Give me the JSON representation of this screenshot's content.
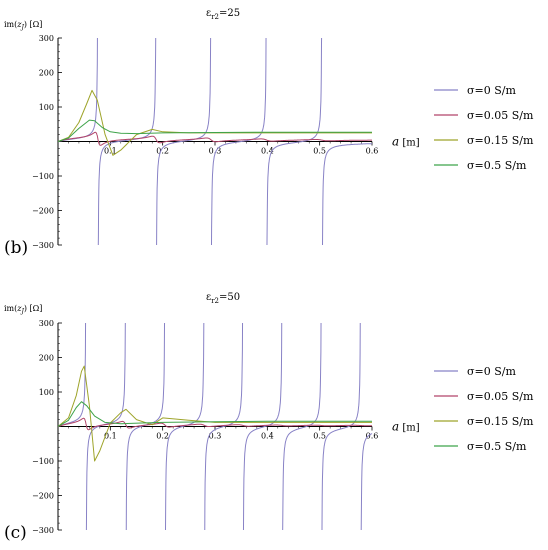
{
  "chart_data": [
    {
      "type": "line",
      "panel_label": "(b)",
      "title": "εr2=25",
      "title_parts": [
        "ε",
        "r2",
        "=25"
      ],
      "ylabel": "im(zJ) [Ω]",
      "ylabel_parts": [
        "im(",
        "z",
        "J",
        ") [Ω]"
      ],
      "xlabel": "a [m]",
      "xlabel_parts": [
        "a",
        " [m]"
      ],
      "xlim": [
        0,
        0.6
      ],
      "ylim": [
        -300,
        300
      ],
      "xticks": [
        0.1,
        0.2,
        0.3,
        0.4,
        0.5,
        0.6
      ],
      "xtick_labels": [
        "0.1",
        "0.2",
        "0.3",
        "0.4",
        "0.5",
        "0.6"
      ],
      "yticks": [
        -300,
        -200,
        -100,
        100,
        200,
        300
      ],
      "ytick_labels": [
        "−300",
        "−200",
        "−100",
        "100",
        "200",
        "300"
      ],
      "legend_position": "right",
      "series": [
        {
          "name": "σ=0 S/m",
          "color": "#8882c6",
          "poles": [
            0.0762,
            0.1875,
            0.2925,
            0.3985,
            0.5045
          ],
          "amp": 45
        },
        {
          "name": "σ=0.05 S/m",
          "color": "#b2456a",
          "damping": 3.2,
          "offset": 6,
          "amp": 40,
          "poles": [
            0.0762,
            0.1875,
            0.2925,
            0.3985,
            0.5045
          ]
        },
        {
          "name": "σ=0.15 S/m",
          "color": "#9ea42a",
          "x": [
            0,
            0.02,
            0.04,
            0.055,
            0.065,
            0.075,
            0.09,
            0.105,
            0.12,
            0.15,
            0.18,
            0.2,
            0.25,
            0.3,
            0.4,
            0.5,
            0.6
          ],
          "y": [
            0,
            12,
            55,
            110,
            148,
            120,
            20,
            -40,
            -25,
            20,
            35,
            28,
            25,
            25,
            25,
            25,
            25
          ]
        },
        {
          "name": "σ=0.5 S/m",
          "color": "#3ea34a",
          "x": [
            0,
            0.02,
            0.04,
            0.06,
            0.07,
            0.085,
            0.1,
            0.12,
            0.15,
            0.2,
            0.3,
            0.4,
            0.5,
            0.6
          ],
          "y": [
            0,
            10,
            38,
            62,
            60,
            40,
            28,
            24,
            23,
            25,
            26,
            27,
            27,
            27
          ]
        }
      ]
    },
    {
      "type": "line",
      "panel_label": "(c)",
      "title": "εr2=50",
      "title_parts": [
        "ε",
        "r2",
        "=50"
      ],
      "ylabel": "im(zJ) [Ω]",
      "ylabel_parts": [
        "im(",
        "z",
        "J",
        ") [Ω]"
      ],
      "xlabel": "a [m]",
      "xlabel_parts": [
        "a",
        " [m]"
      ],
      "xlim": [
        0,
        0.6
      ],
      "ylim": [
        -300,
        300
      ],
      "xticks": [
        0.1,
        0.2,
        0.3,
        0.4,
        0.5,
        0.6
      ],
      "xtick_labels": [
        "0.1",
        "0.2",
        "0.3",
        "0.4",
        "0.5",
        "0.6"
      ],
      "yticks": [
        -300,
        -200,
        -100,
        100,
        200,
        300
      ],
      "ytick_labels": [
        "−300",
        "−200",
        "−100",
        "100",
        "200",
        "300"
      ],
      "legend_position": "right",
      "series": [
        {
          "name": "σ=0 S/m",
          "color": "#8882c6",
          "poles": [
            0.0535,
            0.1295,
            0.2045,
            0.2795,
            0.3535,
            0.4285,
            0.5035,
            0.5785
          ],
          "amp": 45
        },
        {
          "name": "σ=0.05 S/m",
          "color": "#b2456a",
          "damping": 4.0,
          "offset": 5,
          "amp": 35,
          "poles": [
            0.0535,
            0.1295,
            0.2045,
            0.2795,
            0.3535,
            0.4285,
            0.5035,
            0.5785
          ]
        },
        {
          "name": "σ=0.15 S/m",
          "color": "#9ea42a",
          "x": [
            0,
            0.02,
            0.035,
            0.045,
            0.05,
            0.06,
            0.07,
            0.08,
            0.1,
            0.12,
            0.13,
            0.15,
            0.18,
            0.2,
            0.25,
            0.3,
            0.4,
            0.5,
            0.6
          ],
          "y": [
            0,
            25,
            90,
            160,
            175,
            60,
            -100,
            -70,
            10,
            40,
            50,
            20,
            5,
            25,
            18,
            12,
            12,
            12,
            12
          ]
        },
        {
          "name": "σ=0.5 S/m",
          "color": "#3ea34a",
          "x": [
            0,
            0.02,
            0.035,
            0.045,
            0.055,
            0.07,
            0.09,
            0.12,
            0.16,
            0.2,
            0.3,
            0.4,
            0.5,
            0.6
          ],
          "y": [
            0,
            18,
            55,
            72,
            60,
            30,
            12,
            8,
            10,
            12,
            14,
            15,
            15,
            15
          ]
        }
      ]
    }
  ]
}
